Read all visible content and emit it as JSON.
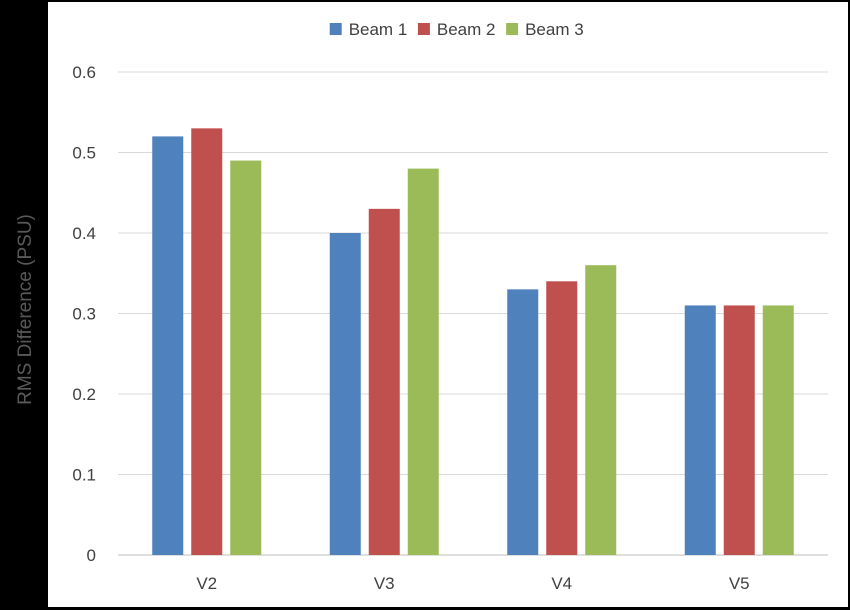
{
  "chart_data": {
    "type": "bar",
    "ylabel": "RMS Difference  (PSU)",
    "xlabel": "",
    "categories": [
      "V2",
      "V3",
      "V4",
      "V5"
    ],
    "series": [
      {
        "name": "Beam 1",
        "color": "#4f81bd",
        "values": [
          0.52,
          0.4,
          0.33,
          0.31
        ]
      },
      {
        "name": "Beam 2",
        "color": "#c0504d",
        "values": [
          0.53,
          0.43,
          0.34,
          0.31
        ]
      },
      {
        "name": "Beam 3",
        "color": "#9bbb59",
        "values": [
          0.49,
          0.48,
          0.36,
          0.31
        ]
      }
    ],
    "ylim": [
      0,
      0.6
    ],
    "yticks": [
      "0",
      "0.1",
      "0.2",
      "0.3",
      "0.4",
      "0.5",
      "0.6"
    ],
    "grid": true,
    "legend_position": "top-center"
  }
}
